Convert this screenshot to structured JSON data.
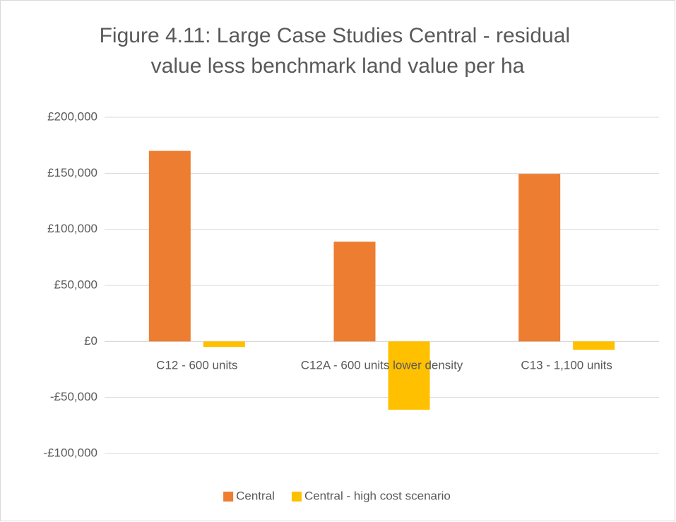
{
  "chart_data": {
    "type": "bar",
    "title": "Figure 4.11: Large Case Studies Central - residual value less benchmark land value per ha",
    "categories": [
      "C12 - 600 units",
      "C12A - 600 units lower density",
      "C13 - 1,100 units"
    ],
    "series": [
      {
        "name": "Central",
        "color": "#ED7D31",
        "values": [
          170000,
          89000,
          149500
        ]
      },
      {
        "name": "Central - high cost scenario",
        "color": "#FFC000",
        "values": [
          -5000,
          -61000,
          -7500
        ]
      }
    ],
    "ylim": [
      -100000,
      200000
    ],
    "yticks": [
      {
        "value": -100000,
        "label": "-£100,000"
      },
      {
        "value": -50000,
        "label": "-£50,000"
      },
      {
        "value": 0,
        "label": "£0"
      },
      {
        "value": 50000,
        "label": "£50,000"
      },
      {
        "value": 100000,
        "label": "£100,000"
      },
      {
        "value": 150000,
        "label": "£150,000"
      },
      {
        "value": 200000,
        "label": "£200,000"
      }
    ],
    "grid": true,
    "legend": "bottom"
  }
}
